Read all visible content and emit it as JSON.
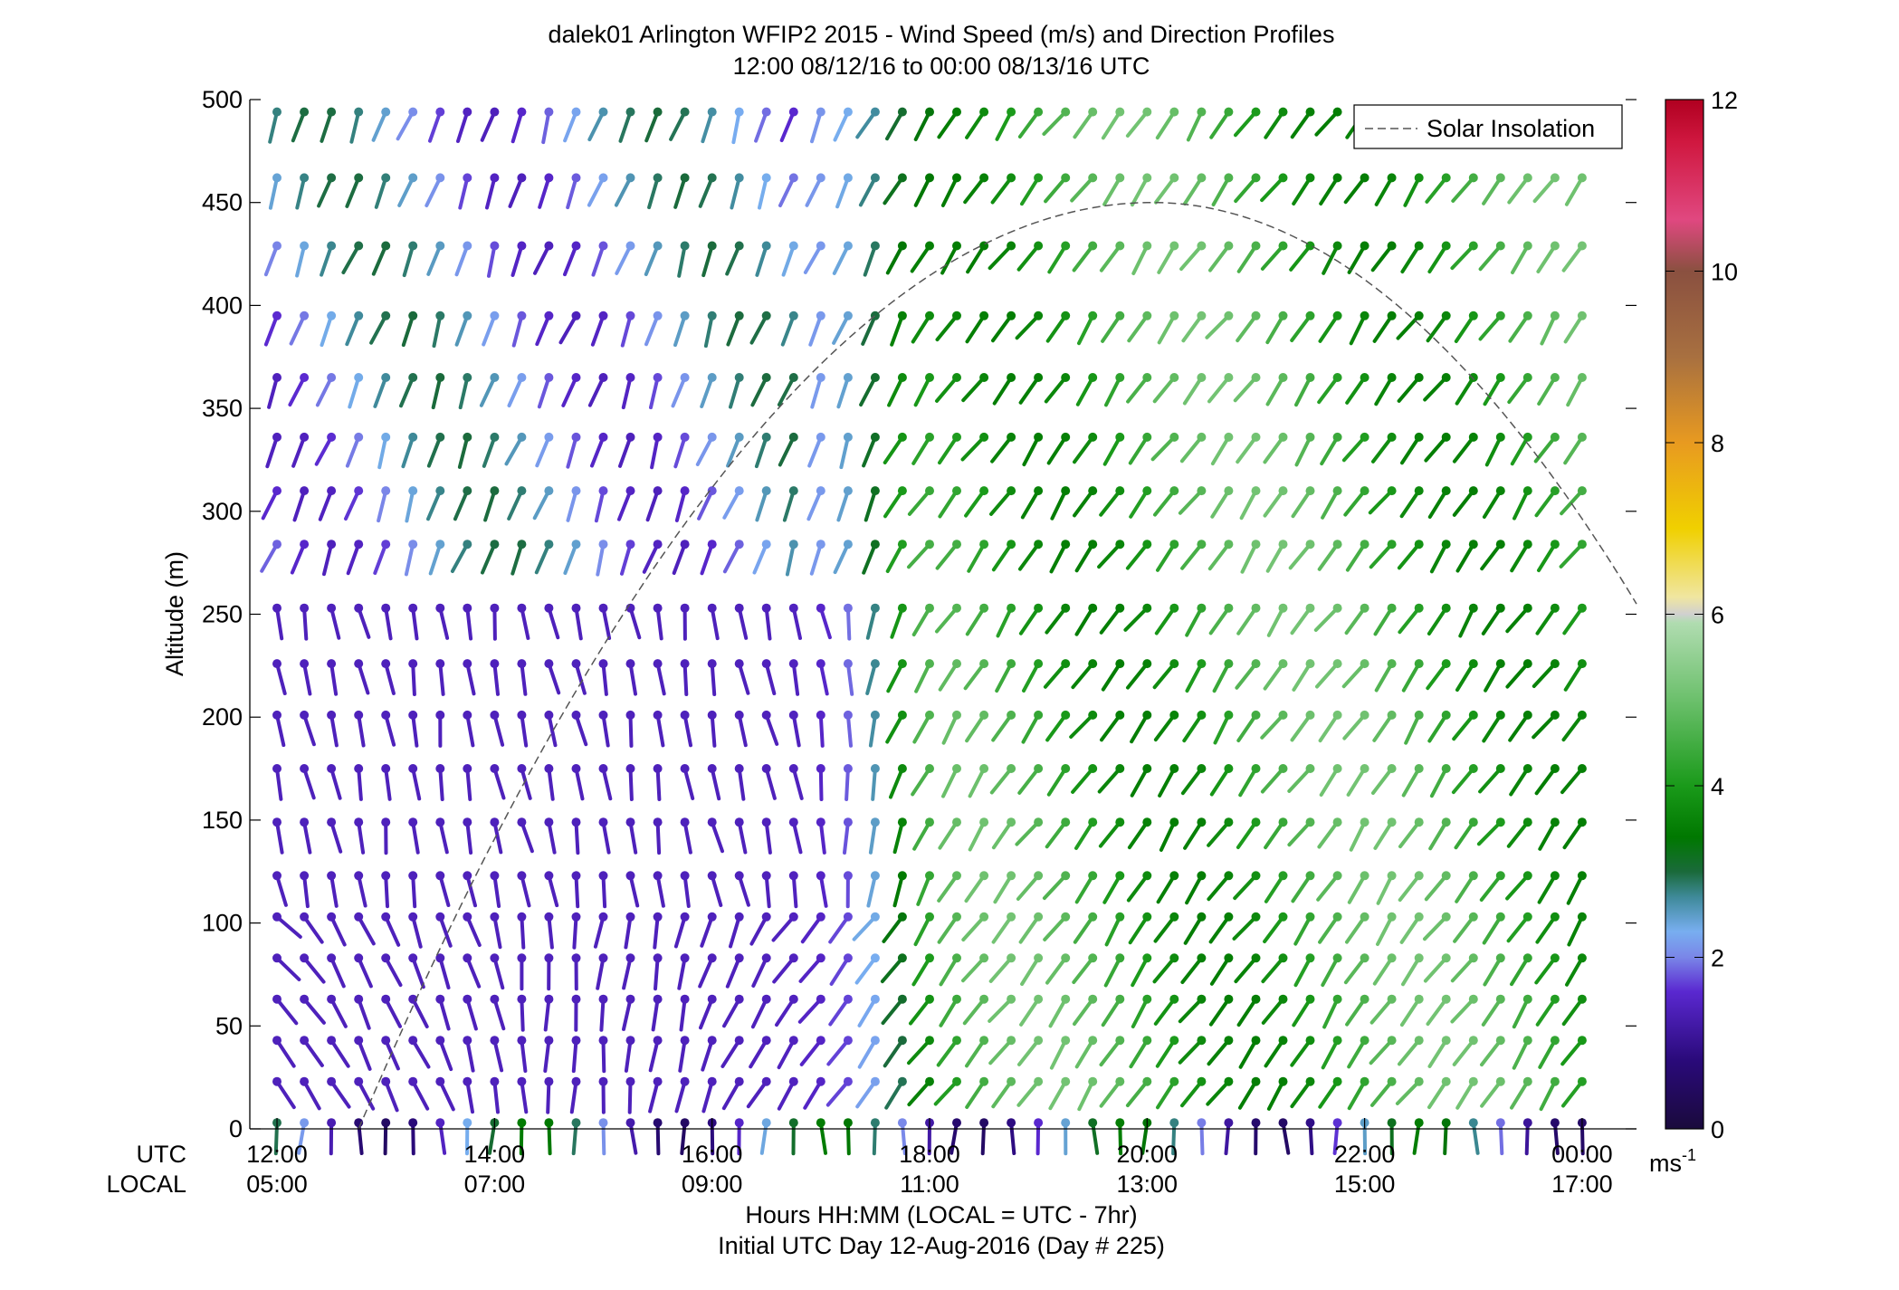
{
  "chart_data": {
    "type": "wind-barb-profile",
    "title": "dalek01 Arlington WFIP2 2015 - Wind Speed (m/s) and Direction Profiles",
    "subtitle": "12:00 08/12/16 to 00:00 08/13/16  UTC",
    "ylabel": "Altitude (m)",
    "xlabel": "Hours HH:MM  (LOCAL = UTC - 7hr)",
    "xlabel2": "Initial UTC Day 12-Aug-2016 (Day # 225)",
    "row_label_utc": "UTC",
    "row_label_local": "LOCAL",
    "ylim": [
      0,
      500
    ],
    "yticks": [
      0,
      50,
      100,
      150,
      200,
      250,
      300,
      350,
      400,
      450,
      500
    ],
    "xlim_hours": [
      11.75,
      24.5
    ],
    "xticks_hours": [
      12,
      14,
      16,
      18,
      20,
      22,
      24
    ],
    "xtick_labels_utc": [
      "12:00",
      "14:00",
      "16:00",
      "18:00",
      "20:00",
      "22:00",
      "00:00"
    ],
    "xtick_labels_local": [
      "05:00",
      "07:00",
      "09:00",
      "11:00",
      "13:00",
      "15:00",
      "17:00"
    ],
    "legend": {
      "entry": "Solar Insolation",
      "style": "dashed",
      "placement": "top-right"
    },
    "solar_insolation": {
      "sunrise_hour": 12.75,
      "sunset_hour": 24.5,
      "peak_hour": 20.05,
      "peak_value_m": 450,
      "value_at_24_5_m": 255
    },
    "colorbar": {
      "label": "ms",
      "label_exponent": "-1",
      "range": [
        0,
        12
      ],
      "ticks": [
        0,
        2,
        4,
        6,
        8,
        10,
        12
      ],
      "stops": [
        {
          "v": 0.0,
          "c": "#1a0a3c"
        },
        {
          "v": 0.8,
          "c": "#2a0a7a"
        },
        {
          "v": 1.6,
          "c": "#5a28d0"
        },
        {
          "v": 2.0,
          "c": "#7a86e8"
        },
        {
          "v": 2.3,
          "c": "#78aef0"
        },
        {
          "v": 2.7,
          "c": "#3f8a9a"
        },
        {
          "v": 3.0,
          "c": "#1a6a3a"
        },
        {
          "v": 3.4,
          "c": "#007800"
        },
        {
          "v": 4.0,
          "c": "#1a9a1a"
        },
        {
          "v": 5.0,
          "c": "#6cc06c"
        },
        {
          "v": 5.9,
          "c": "#b0dcb0"
        },
        {
          "v": 6.0,
          "c": "#d0d0d0"
        },
        {
          "v": 6.2,
          "c": "#f0e6a0"
        },
        {
          "v": 7.0,
          "c": "#f0d000"
        },
        {
          "v": 8.0,
          "c": "#e89a20"
        },
        {
          "v": 9.0,
          "c": "#a87040"
        },
        {
          "v": 10.0,
          "c": "#8a5040"
        },
        {
          "v": 10.6,
          "c": "#e04880"
        },
        {
          "v": 11.5,
          "c": "#d01840"
        },
        {
          "v": 12.0,
          "c": "#b00020"
        }
      ]
    },
    "altitudes_m": [
      3,
      23,
      43,
      63,
      83,
      103,
      123,
      149,
      175,
      201,
      226,
      253,
      284,
      310,
      336,
      365,
      395,
      429,
      462,
      494
    ],
    "time_start_hour": 12.0,
    "time_step_hours": 0.25,
    "time_steps": 49,
    "barbs_drawn_every_step": 1
  }
}
